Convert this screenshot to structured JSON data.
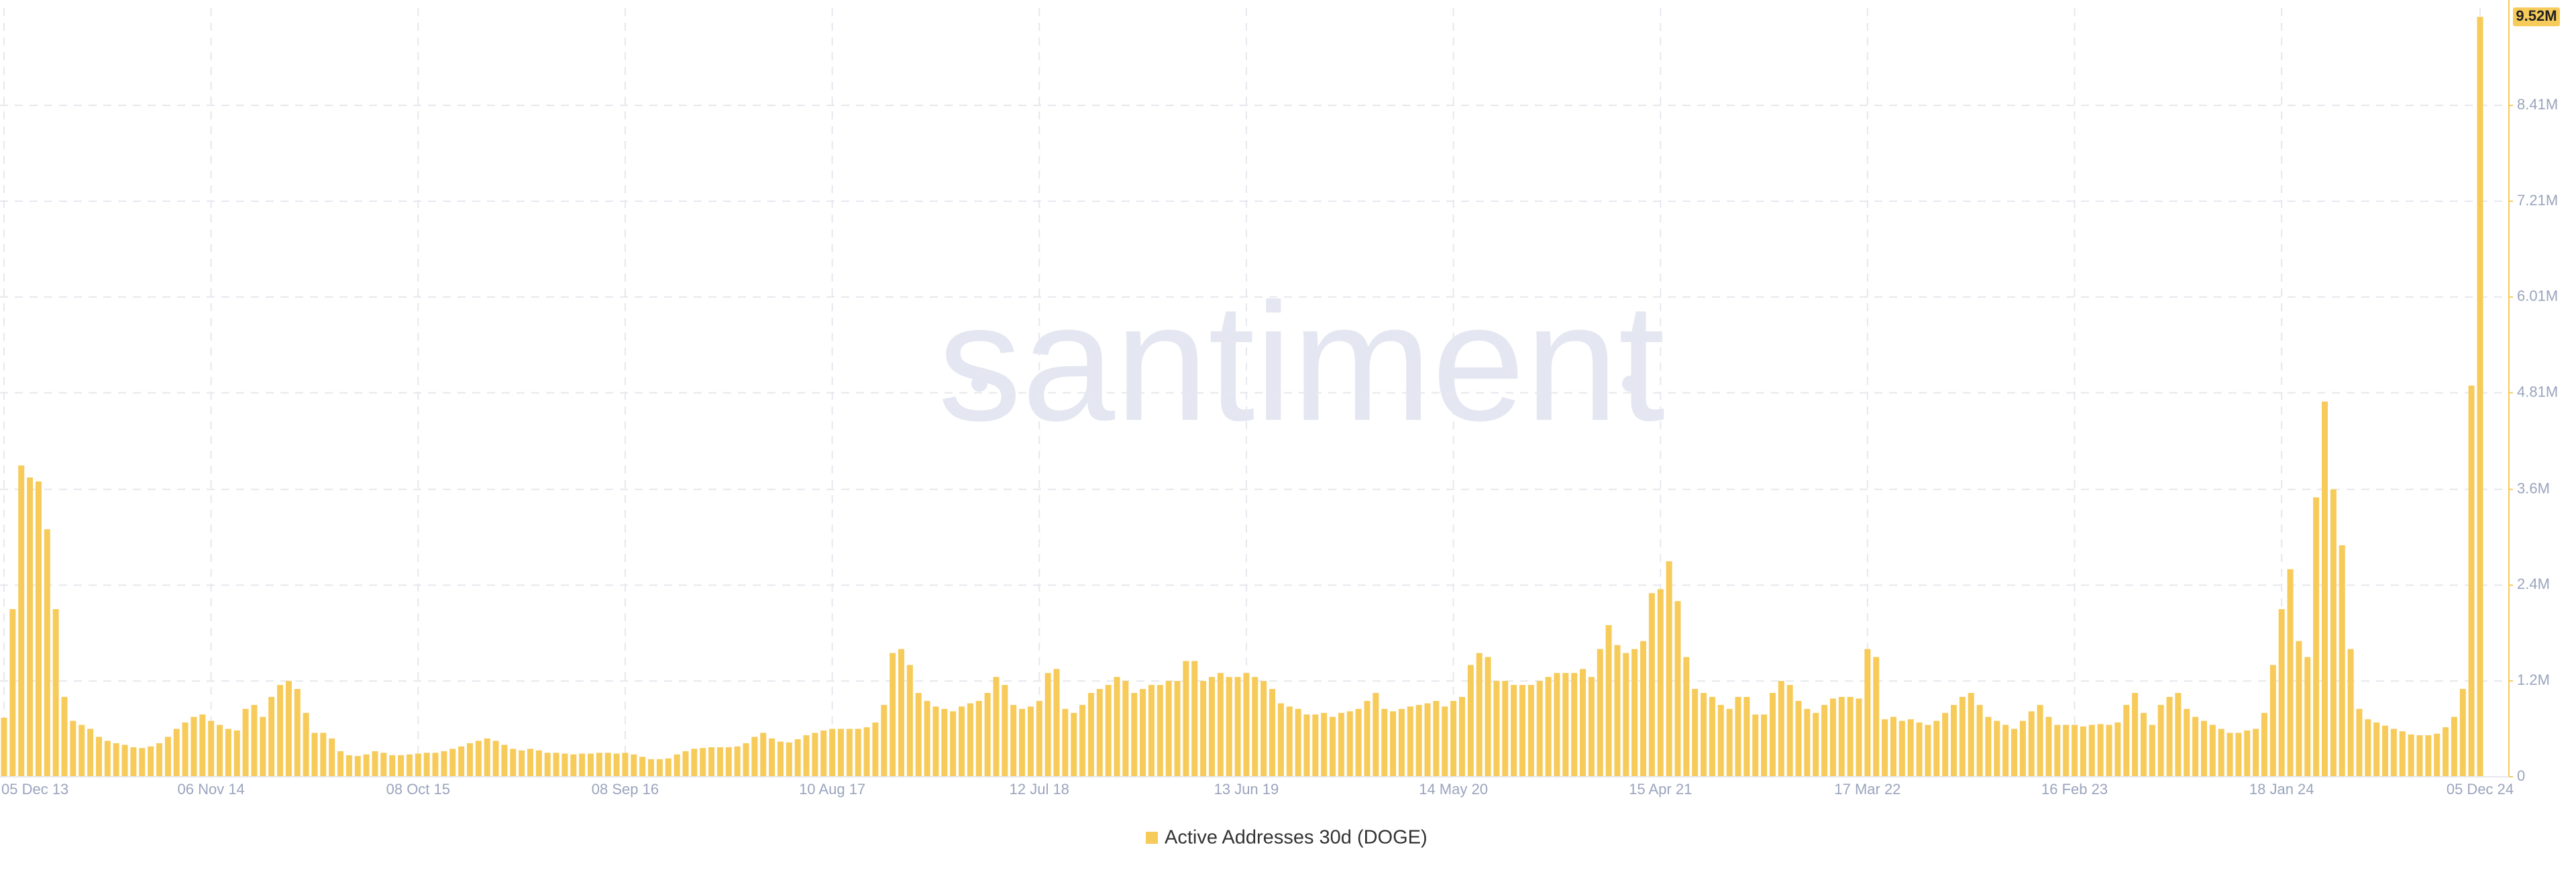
{
  "chart_data": {
    "type": "bar",
    "watermark": "santiment",
    "categories": [
      "05 Dec 13",
      null,
      null,
      null,
      null,
      null,
      null,
      null,
      null,
      null,
      null,
      null,
      null,
      null,
      null,
      null,
      null,
      null,
      null,
      null,
      null,
      null,
      null,
      null,
      "06 Nov 14",
      null,
      null,
      null,
      null,
      null,
      null,
      null,
      null,
      null,
      null,
      null,
      null,
      null,
      null,
      null,
      null,
      null,
      null,
      null,
      null,
      null,
      null,
      null,
      "08 Oct 15",
      null,
      null,
      null,
      null,
      null,
      null,
      null,
      null,
      null,
      null,
      null,
      null,
      null,
      null,
      null,
      null,
      null,
      null,
      null,
      null,
      null,
      null,
      null,
      "08 Sep 16",
      null,
      null,
      null,
      null,
      null,
      null,
      null,
      null,
      null,
      null,
      null,
      null,
      null,
      null,
      null,
      null,
      null,
      null,
      null,
      null,
      null,
      null,
      null,
      "10 Aug 17",
      null,
      null,
      null,
      null,
      null,
      null,
      null,
      null,
      null,
      null,
      null,
      null,
      null,
      null,
      null,
      null,
      null,
      null,
      null,
      null,
      null,
      null,
      null,
      "12 Jul 18",
      null,
      null,
      null,
      null,
      null,
      null,
      null,
      null,
      null,
      null,
      null,
      null,
      null,
      null,
      null,
      null,
      null,
      null,
      null,
      null,
      null,
      null,
      null,
      "13 Jun 19",
      null,
      null,
      null,
      null,
      null,
      null,
      null,
      null,
      null,
      null,
      null,
      null,
      null,
      null,
      null,
      null,
      null,
      null,
      null,
      null,
      null,
      null,
      null,
      "14 May 20",
      null,
      null,
      null,
      null,
      null,
      null,
      null,
      null,
      null,
      null,
      null,
      null,
      null,
      null,
      null,
      null,
      null,
      null,
      null,
      null,
      null,
      null,
      null,
      "15 Apr 21",
      null,
      null,
      null,
      null,
      null,
      null,
      null,
      null,
      null,
      null,
      null,
      null,
      null,
      null,
      null,
      null,
      null,
      null,
      null,
      null,
      null,
      null,
      null,
      "17 Mar 22",
      null,
      null,
      null,
      null,
      null,
      null,
      null,
      null,
      null,
      null,
      null,
      null,
      null,
      null,
      null,
      null,
      null,
      null,
      null,
      null,
      null,
      null,
      null,
      "16 Feb 23",
      null,
      null,
      null,
      null,
      null,
      null,
      null,
      null,
      null,
      null,
      null,
      null,
      null,
      null,
      null,
      null,
      null,
      null,
      null,
      null,
      null,
      null,
      null,
      "18 Jan 24",
      null,
      null,
      null,
      null,
      null,
      null,
      null,
      null,
      null,
      null,
      null,
      null,
      null,
      null,
      null,
      null,
      null,
      null,
      null,
      null,
      null,
      null,
      "05 Dec 24"
    ],
    "series": [
      {
        "name": "Active Addresses 30d (DOGE)",
        "color": "#f7cb5a",
        "values": [
          0.74,
          2.1,
          3.9,
          3.75,
          3.7,
          3.1,
          2.1,
          1.0,
          0.7,
          0.65,
          0.6,
          0.5,
          0.45,
          0.42,
          0.4,
          0.37,
          0.36,
          0.38,
          0.42,
          0.5,
          0.6,
          0.68,
          0.75,
          0.78,
          0.7,
          0.65,
          0.6,
          0.58,
          0.85,
          0.9,
          0.75,
          1.0,
          1.15,
          1.2,
          1.1,
          0.8,
          0.55,
          0.55,
          0.48,
          0.32,
          0.27,
          0.26,
          0.28,
          0.32,
          0.3,
          0.27,
          0.27,
          0.28,
          0.29,
          0.3,
          0.3,
          0.32,
          0.35,
          0.38,
          0.42,
          0.45,
          0.48,
          0.45,
          0.4,
          0.35,
          0.33,
          0.35,
          0.33,
          0.3,
          0.3,
          0.29,
          0.28,
          0.29,
          0.29,
          0.3,
          0.3,
          0.29,
          0.3,
          0.28,
          0.25,
          0.22,
          0.22,
          0.23,
          0.28,
          0.32,
          0.35,
          0.36,
          0.37,
          0.37,
          0.37,
          0.38,
          0.42,
          0.5,
          0.55,
          0.48,
          0.44,
          0.43,
          0.47,
          0.52,
          0.55,
          0.58,
          0.6,
          0.6,
          0.6,
          0.6,
          0.62,
          0.68,
          0.9,
          1.55,
          1.6,
          1.4,
          1.05,
          0.95,
          0.88,
          0.85,
          0.82,
          0.88,
          0.92,
          0.95,
          1.05,
          1.25,
          1.15,
          0.9,
          0.85,
          0.88,
          0.95,
          1.3,
          1.35,
          0.85,
          0.8,
          0.9,
          1.05,
          1.1,
          1.15,
          1.25,
          1.2,
          1.05,
          1.1,
          1.15,
          1.15,
          1.2,
          1.2,
          1.45,
          1.45,
          1.2,
          1.25,
          1.3,
          1.25,
          1.25,
          1.3,
          1.25,
          1.2,
          1.1,
          0.92,
          0.88,
          0.85,
          0.78,
          0.78,
          0.8,
          0.75,
          0.8,
          0.82,
          0.85,
          0.95,
          1.05,
          0.85,
          0.82,
          0.85,
          0.88,
          0.9,
          0.92,
          0.95,
          0.88,
          0.95,
          1.0,
          1.4,
          1.55,
          1.5,
          1.2,
          1.2,
          1.15,
          1.15,
          1.15,
          1.2,
          1.25,
          1.3,
          1.3,
          1.3,
          1.35,
          1.25,
          1.6,
          1.9,
          1.65,
          1.55,
          1.6,
          1.7,
          2.3,
          2.35,
          2.7,
          2.2,
          1.5,
          1.1,
          1.05,
          1.0,
          0.9,
          0.85,
          1.0,
          1.0,
          0.78,
          0.78,
          1.05,
          1.2,
          1.15,
          0.95,
          0.85,
          0.8,
          0.9,
          0.98,
          1.0,
          1.0,
          0.98,
          1.6,
          1.5,
          0.72,
          0.75,
          0.7,
          0.72,
          0.68,
          0.65,
          0.7,
          0.8,
          0.9,
          1.0,
          1.05,
          0.9,
          0.75,
          0.7,
          0.65,
          0.6,
          0.7,
          0.82,
          0.9,
          0.75,
          0.65,
          0.65,
          0.65,
          0.63,
          0.65,
          0.66,
          0.65,
          0.68,
          0.9,
          1.05,
          0.8,
          0.65,
          0.9,
          1.0,
          1.05,
          0.85,
          0.75,
          0.7,
          0.65,
          0.6,
          0.55,
          0.55,
          0.58,
          0.6,
          0.8,
          1.4,
          2.1,
          2.6,
          1.7,
          1.5,
          3.5,
          4.7,
          3.6,
          2.9,
          1.6,
          0.85,
          0.72,
          0.68,
          0.64,
          0.6,
          0.57,
          0.53,
          0.52,
          0.52,
          0.54,
          0.62,
          0.75,
          1.1,
          4.9,
          9.52
        ],
        "value_labels": {
          "287": "9.52M"
        }
      }
    ],
    "ylim": [
      0,
      9.63
    ],
    "yticks": [
      0,
      {
        "value": 1.2,
        "label": "1.2M"
      },
      {
        "value": 2.4,
        "label": "2.4M"
      },
      {
        "value": 3.6,
        "label": "3.6M"
      },
      {
        "value": 4.81,
        "label": "4.81M"
      },
      {
        "value": 6.01,
        "label": "6.01M"
      },
      {
        "value": 7.21,
        "label": "7.21M"
      },
      {
        "value": 8.41,
        "label": "8.41M"
      }
    ],
    "grid": true
  }
}
